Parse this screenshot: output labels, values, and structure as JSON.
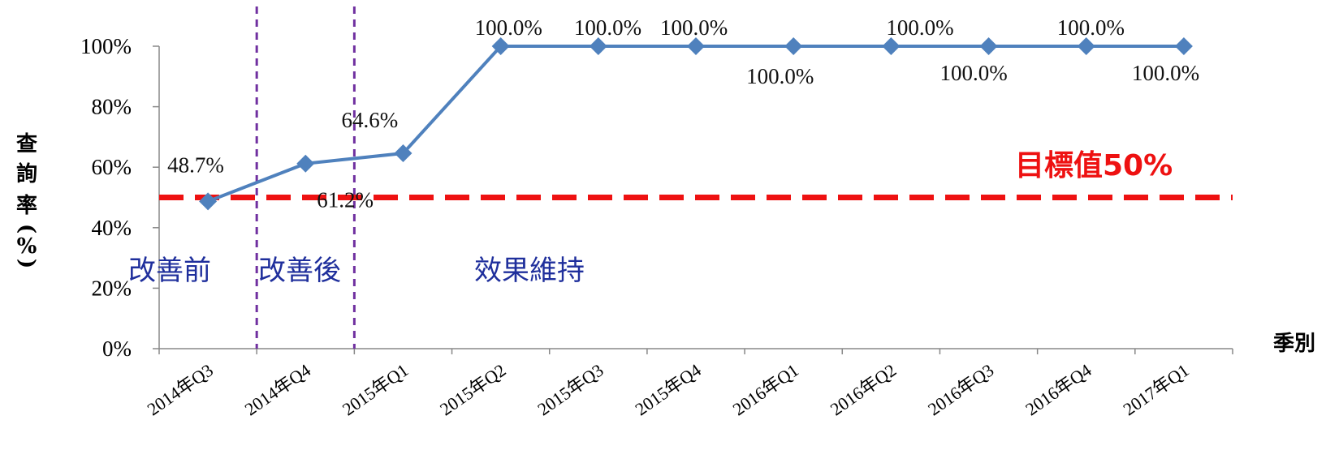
{
  "chart_data": {
    "type": "line",
    "categories": [
      "2014年Q3",
      "2014年Q4",
      "2015年Q1",
      "2015年Q2",
      "2015年Q3",
      "2015年Q4",
      "2016年Q1",
      "2016年Q2",
      "2016年Q3",
      "2016年Q4",
      "2017年Q1"
    ],
    "series": [
      {
        "values": [
          48.7,
          61.2,
          64.6,
          100.0,
          100.0,
          100.0,
          100.0,
          100.0,
          100.0,
          100.0,
          100.0
        ],
        "data_labels": [
          "48.7%",
          "61.2%",
          "64.6%",
          "100.0%",
          "100.0%",
          "100.0%",
          "100.0%",
          "100.0%",
          "100.0%",
          "100.0%",
          "100.0%"
        ],
        "color": "#4f81bd",
        "marker": "diamond"
      }
    ],
    "ylabel_chars": [
      "查",
      "詢",
      "率",
      "(",
      "%",
      ")"
    ],
    "xlabel": "季別",
    "ylim": [
      0,
      100
    ],
    "yticks": [
      0,
      20,
      40,
      60,
      80,
      100
    ],
    "ytick_labels": [
      "0%",
      "20%",
      "40%",
      "60%",
      "80%",
      "100%"
    ],
    "grid": false,
    "legend": "none",
    "target": {
      "value": 50,
      "label": "目標值50%",
      "color": "#ee1111"
    },
    "phase_dividers_after_index": [
      0,
      1
    ],
    "divider_color": "#7030a0",
    "phases": [
      "改善前",
      "改善後",
      "效果維持"
    ]
  }
}
